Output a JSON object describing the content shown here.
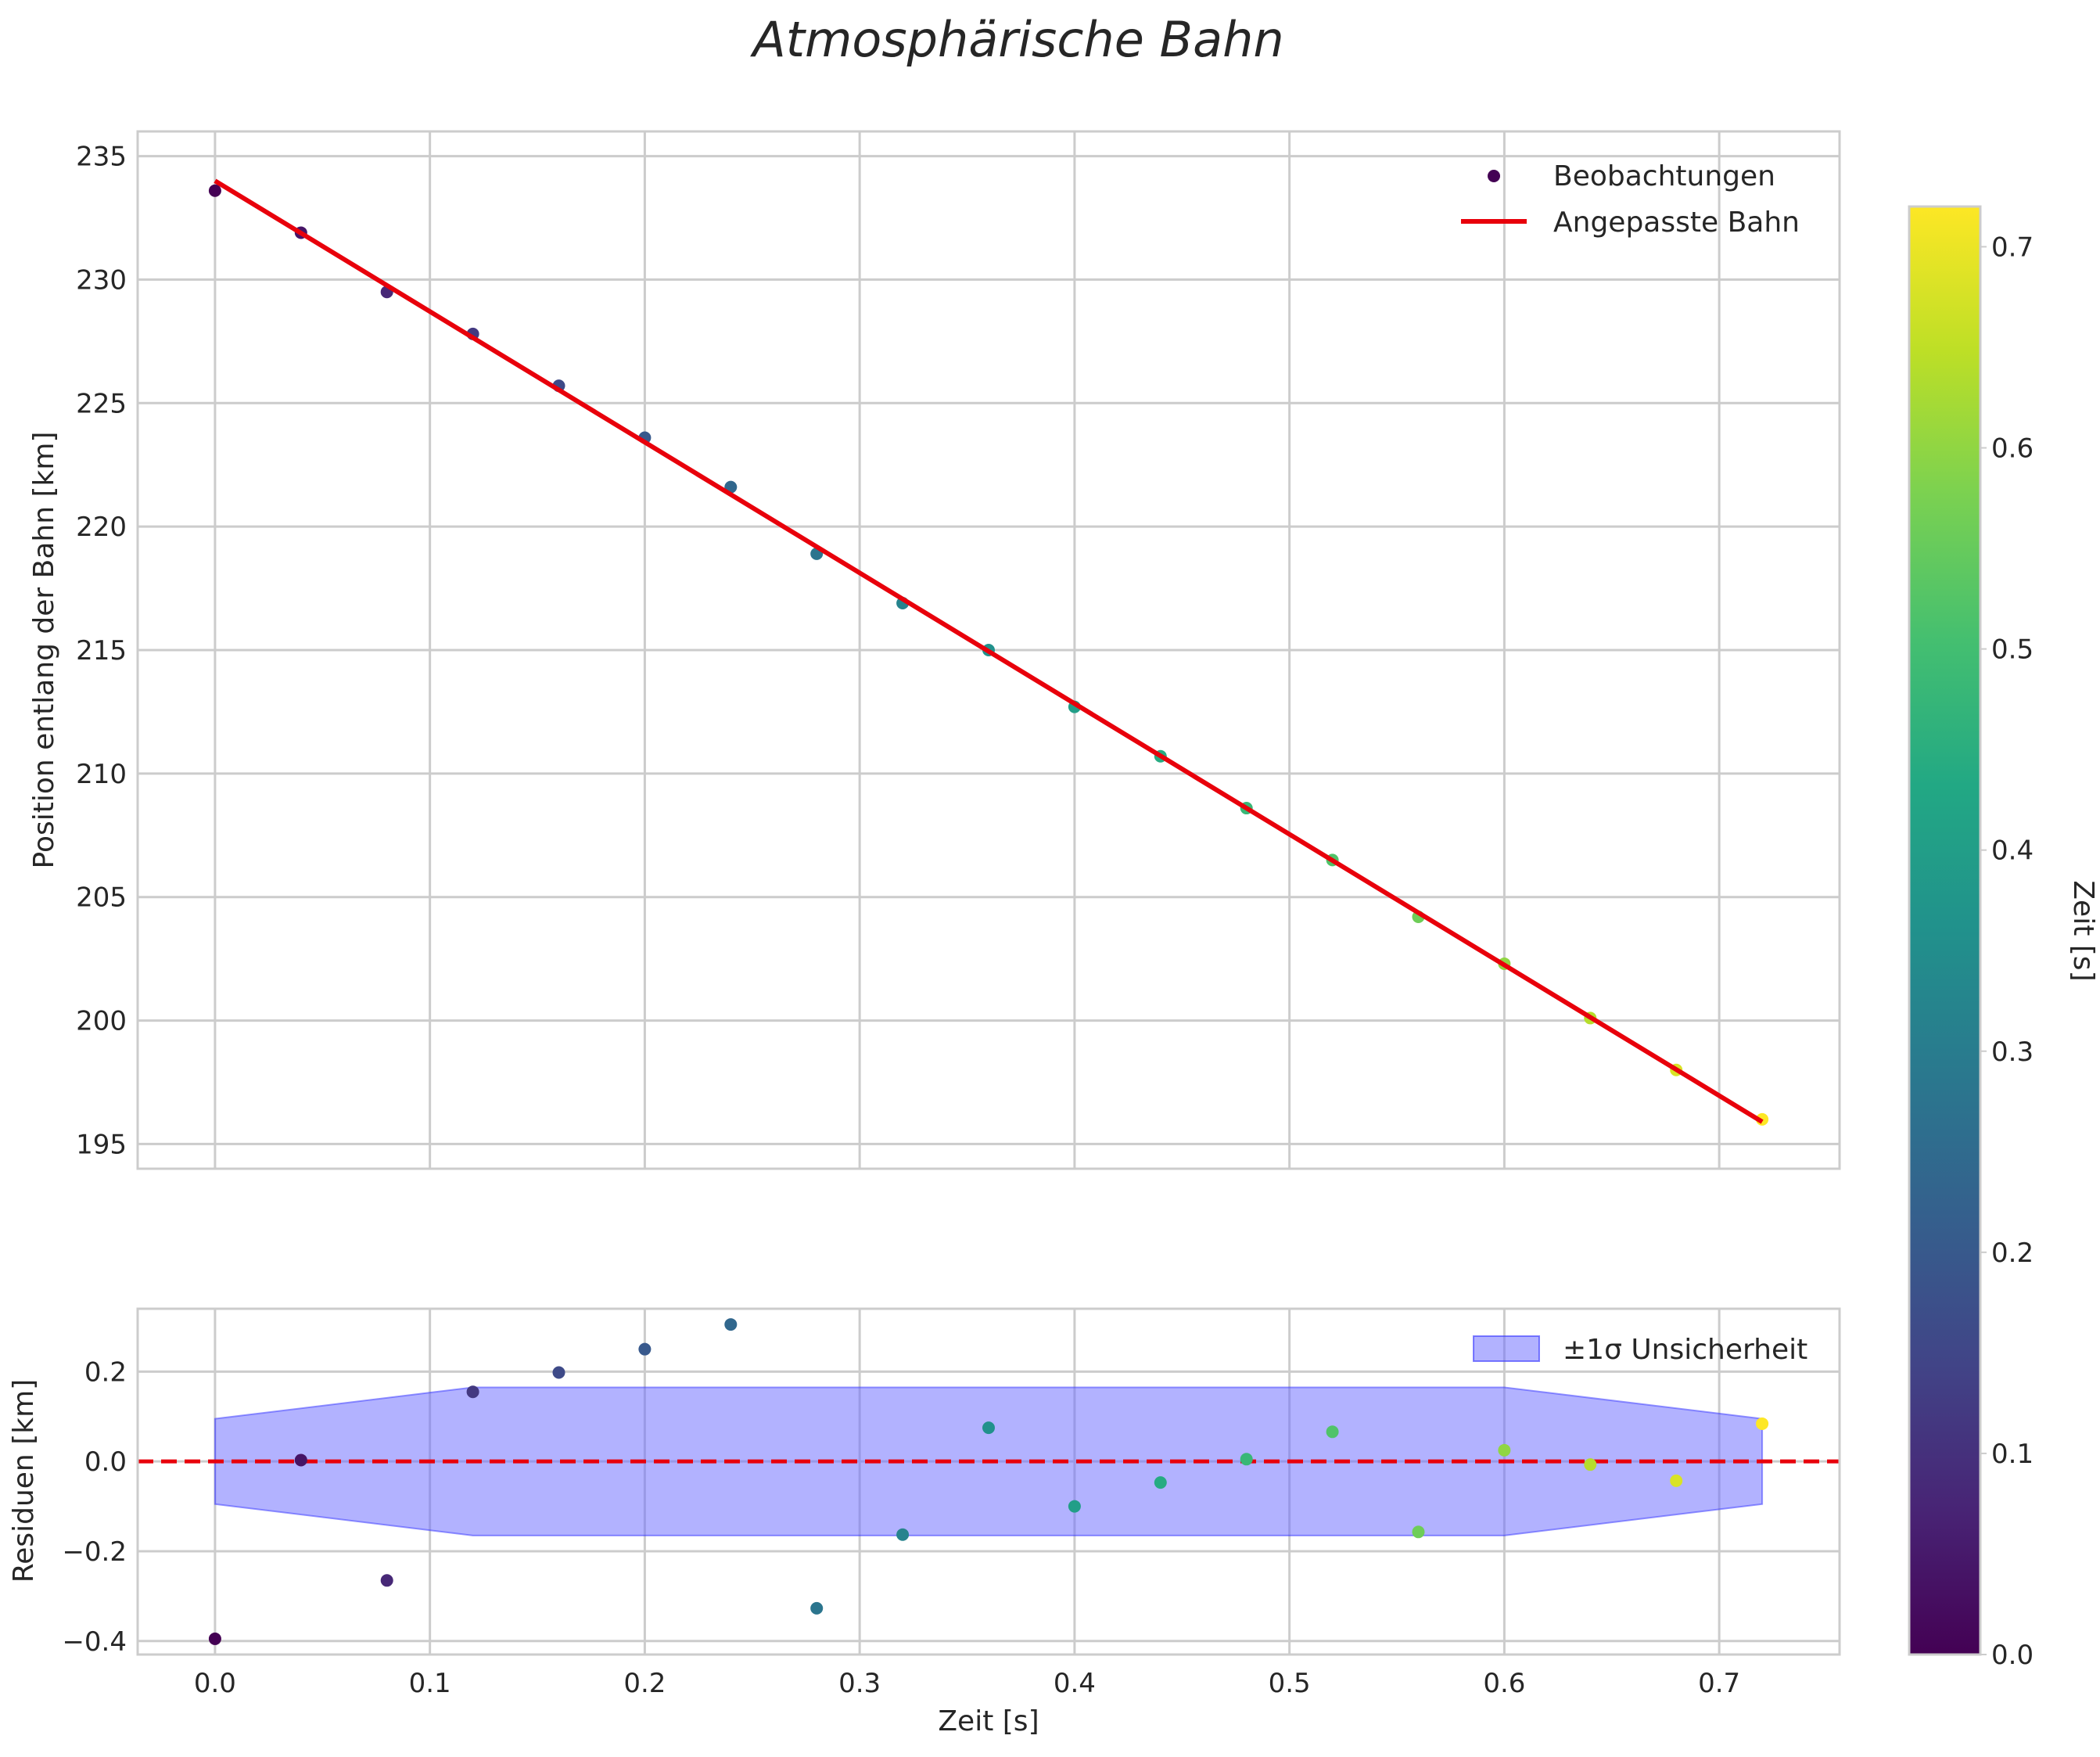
{
  "chart_data": [
    {
      "panel": "main",
      "type": "scatter+line",
      "title": "Atmosphärische Bahn",
      "xlabel": "",
      "ylabel": "Position entlang der Bahn [km]",
      "xlim": [
        -0.036,
        0.756
      ],
      "ylim": [
        194,
        236
      ],
      "xticks": [
        0.0,
        0.1,
        0.2,
        0.3,
        0.4,
        0.5,
        0.6,
        0.7
      ],
      "yticks": [
        195,
        200,
        205,
        210,
        215,
        220,
        225,
        230,
        235
      ],
      "ytick_labels": [
        "195",
        "200",
        "205",
        "210",
        "215",
        "220",
        "225",
        "230",
        "235"
      ],
      "grid": true,
      "legend_position": "top-right",
      "series": [
        {
          "name": "Beobachtungen",
          "kind": "scatter",
          "color_by": "time",
          "x": [
            0.0,
            0.04,
            0.08,
            0.12,
            0.16,
            0.2,
            0.24,
            0.28,
            0.32,
            0.36,
            0.4,
            0.44,
            0.48,
            0.52,
            0.56,
            0.6,
            0.64,
            0.68,
            0.72
          ],
          "y": [
            233.6,
            231.9,
            229.5,
            227.8,
            225.7,
            223.6,
            221.6,
            218.9,
            216.9,
            215.0,
            212.7,
            210.7,
            208.6,
            206.5,
            204.2,
            202.3,
            200.1,
            198.0,
            196.0
          ]
        },
        {
          "name": "Angepasste Bahn",
          "kind": "line",
          "color": "#e8000b",
          "x": [
            0.0,
            0.72
          ],
          "y": [
            234.0,
            195.9
          ]
        }
      ]
    },
    {
      "panel": "residuals",
      "type": "scatter+band",
      "xlabel": "Zeit [s]",
      "ylabel": "Residuen [km]",
      "xlim": [
        -0.036,
        0.756
      ],
      "ylim": [
        -0.43,
        0.34
      ],
      "xticks": [
        0.0,
        0.1,
        0.2,
        0.3,
        0.4,
        0.5,
        0.6,
        0.7
      ],
      "xtick_labels": [
        "0.0",
        "0.1",
        "0.2",
        "0.3",
        "0.4",
        "0.5",
        "0.6",
        "0.7"
      ],
      "yticks": [
        -0.4,
        -0.2,
        0.0,
        0.2
      ],
      "ytick_labels": [
        "−0.4",
        "−0.2",
        "0.0",
        "0.2"
      ],
      "grid": true,
      "legend_position": "top-right",
      "zero_line": {
        "y": 0.0,
        "color": "#e8000b",
        "style": "dashed"
      },
      "band": {
        "name": "±1σ Unsicherheit",
        "color": "#6666ff",
        "x": [
          0.0,
          0.12,
          0.6,
          0.72
        ],
        "upper": [
          0.095,
          0.165,
          0.165,
          0.095
        ],
        "lower": [
          -0.095,
          -0.165,
          -0.165,
          -0.095
        ]
      },
      "points": {
        "color_by": "time",
        "x": [
          0.0,
          0.04,
          0.08,
          0.12,
          0.16,
          0.2,
          0.24,
          0.28,
          0.32,
          0.36,
          0.4,
          0.44,
          0.48,
          0.52,
          0.56,
          0.6,
          0.64,
          0.68,
          0.72
        ],
        "y": [
          -0.395,
          0.003,
          -0.265,
          0.155,
          0.198,
          0.25,
          0.305,
          -0.327,
          -0.163,
          0.075,
          -0.1,
          -0.047,
          0.005,
          0.066,
          -0.157,
          0.025,
          -0.007,
          -0.043,
          0.084
        ]
      }
    },
    {
      "panel": "colorbar",
      "type": "colorbar",
      "label": "Zeit [s]",
      "colormap": "viridis",
      "range": [
        0.0,
        0.72
      ],
      "ticks": [
        0.0,
        0.1,
        0.2,
        0.3,
        0.4,
        0.5,
        0.6,
        0.7
      ]
    }
  ]
}
